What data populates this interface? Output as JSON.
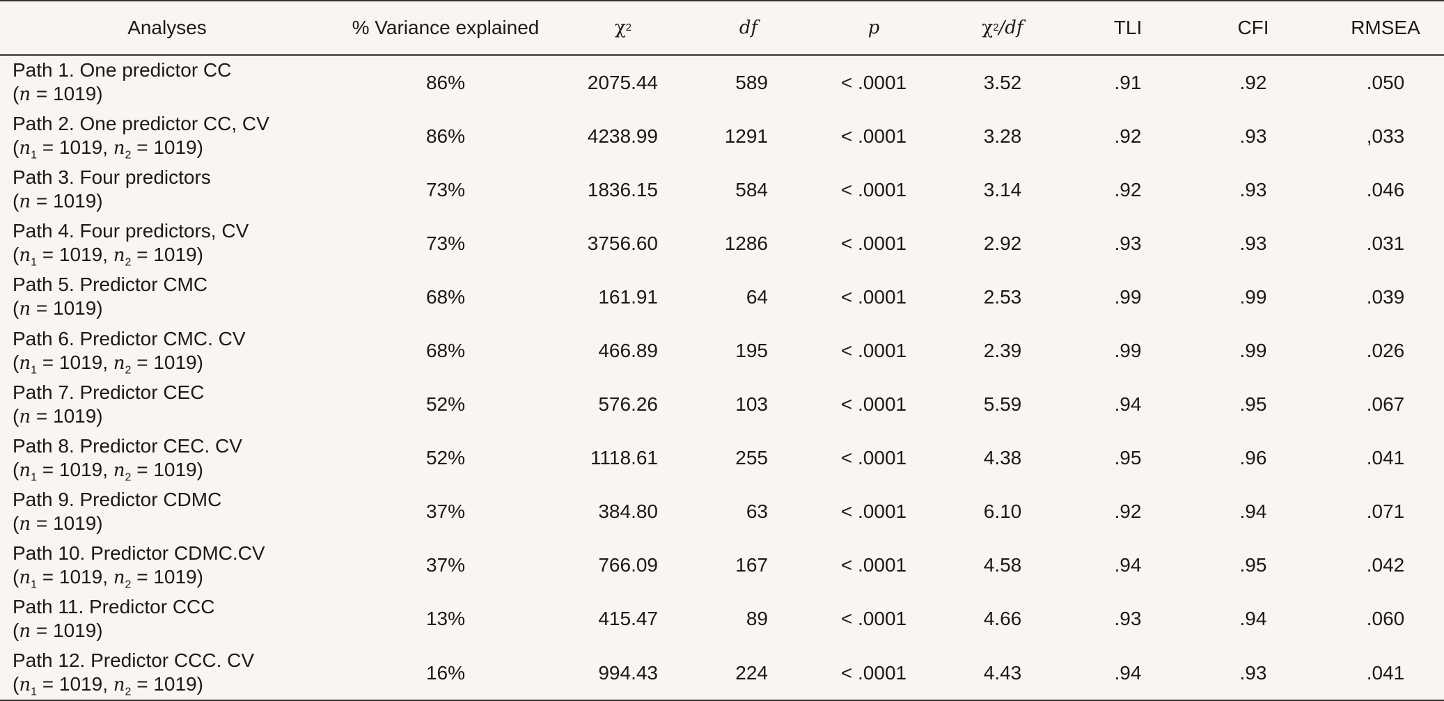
{
  "headers": {
    "analyses": "Analyses",
    "variance": "% Variance explained",
    "chi2_base": "χ",
    "chi2_sup": "2",
    "df": "df",
    "p": "p",
    "chi2df_base": "χ",
    "chi2df_sup": "2",
    "chi2df_sep": "/",
    "chi2df_df": "df",
    "tli": "TLI",
    "cfi": "CFI",
    "rmsea": "RMSEA"
  },
  "rows": [
    {
      "title": "Path 1. One predictor CC",
      "sample": "single",
      "n": "1019",
      "variance": "86%",
      "chi2": "2075.44",
      "df": "589",
      "p": "< .0001",
      "chi2df": "3.52",
      "tli": ".91",
      "cfi": ".92",
      "rmsea": ".050"
    },
    {
      "title": "Path 2. One predictor CC, CV",
      "sample": "double",
      "n1": "1019",
      "n2": "1019",
      "variance": "86%",
      "chi2": "4238.99",
      "df": "1291",
      "p": "< .0001",
      "chi2df": "3.28",
      "tli": ".92",
      "cfi": ".93",
      "rmsea": ",033"
    },
    {
      "title": "Path 3. Four predictors",
      "sample": "single",
      "n": "1019",
      "variance": "73%",
      "chi2": "1836.15",
      "df": "584",
      "p": "< .0001",
      "chi2df": "3.14",
      "tli": ".92",
      "cfi": ".93",
      "rmsea": ".046"
    },
    {
      "title": "Path 4. Four predictors, CV",
      "sample": "double",
      "n1": "1019",
      "n2": "1019",
      "variance": "73%",
      "chi2": "3756.60",
      "df": "1286",
      "p": "< .0001",
      "chi2df": "2.92",
      "tli": ".93",
      "cfi": ".93",
      "rmsea": ".031"
    },
    {
      "title": "Path 5. Predictor CMC",
      "sample": "single",
      "n": "1019",
      "variance": "68%",
      "chi2": "161.91",
      "df": "64",
      "p": "< .0001",
      "chi2df": "2.53",
      "tli": ".99",
      "cfi": ".99",
      "rmsea": ".039"
    },
    {
      "title": "Path 6. Predictor CMC. CV",
      "sample": "double",
      "n1": "1019",
      "n2": "1019",
      "variance": "68%",
      "chi2": "466.89",
      "df": "195",
      "p": "< .0001",
      "chi2df": "2.39",
      "tli": ".99",
      "cfi": ".99",
      "rmsea": ".026"
    },
    {
      "title": "Path 7. Predictor CEC",
      "sample": "single",
      "n": "1019",
      "variance": "52%",
      "chi2": "576.26",
      "df": "103",
      "p": "< .0001",
      "chi2df": "5.59",
      "tli": ".94",
      "cfi": ".95",
      "rmsea": ".067"
    },
    {
      "title": "Path 8. Predictor CEC. CV",
      "sample": "double",
      "n1": "1019",
      "n2": "1019",
      "variance": "52%",
      "chi2": "1118.61",
      "df": "255",
      "p": "< .0001",
      "chi2df": "4.38",
      "tli": ".95",
      "cfi": ".96",
      "rmsea": ".041"
    },
    {
      "title": "Path 9. Predictor CDMC",
      "sample": "single",
      "n": "1019",
      "variance": "37%",
      "chi2": "384.80",
      "df": "63",
      "p": "< .0001",
      "chi2df": "6.10",
      "tli": ".92",
      "cfi": ".94",
      "rmsea": ".071"
    },
    {
      "title": "Path 10. Predictor CDMC.CV",
      "sample": "double",
      "n1": "1019",
      "n2": "1019",
      "variance": "37%",
      "chi2": "766.09",
      "df": "167",
      "p": "< .0001",
      "chi2df": "4.58",
      "tli": ".94",
      "cfi": ".95",
      "rmsea": ".042"
    },
    {
      "title": "Path 11. Predictor CCC",
      "sample": "single",
      "n": "1019",
      "variance": "13%",
      "chi2": "415.47",
      "df": "89",
      "p": "< .0001",
      "chi2df": "4.66",
      "tli": ".93",
      "cfi": ".94",
      "rmsea": ".060"
    },
    {
      "title": "Path 12. Predictor CCC. CV",
      "sample": "double",
      "n1": "1019",
      "n2": "1019",
      "variance": "16%",
      "chi2": "994.43",
      "df": "224",
      "p": "< .0001",
      "chi2df": "4.43",
      "tli": ".94",
      "cfi": ".93",
      "rmsea": ".041"
    }
  ]
}
